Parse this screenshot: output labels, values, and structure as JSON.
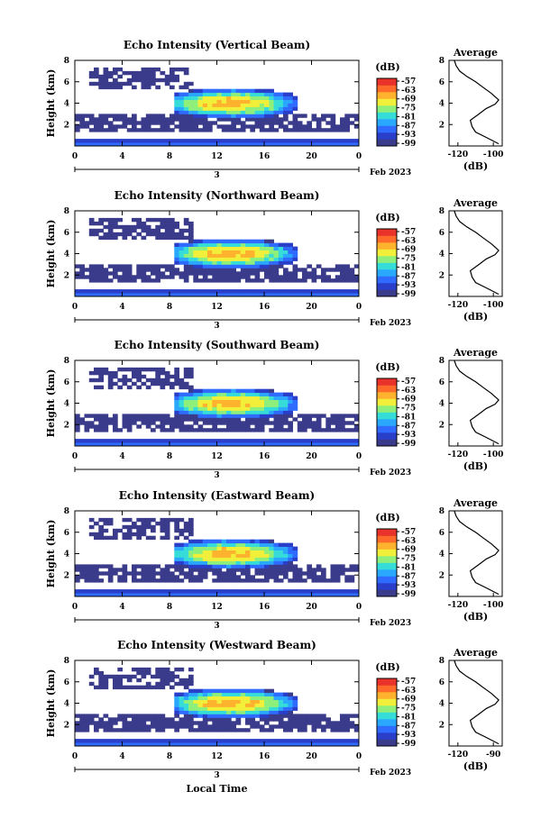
{
  "figure": {
    "xlabel": "Local Time",
    "month_label": "Feb 2023",
    "date_label": "3",
    "colorbar_unit": "(dB)",
    "colorbar_ticks": [
      "-57",
      "-63",
      "-69",
      "-75",
      "-81",
      "-87",
      "-93",
      "-99"
    ],
    "colorscale": [
      "#3b3b8c",
      "#2a3fc9",
      "#2f6bff",
      "#2aa8ff",
      "#36dcd8",
      "#8ef07a",
      "#f2ef3a",
      "#ffb22e",
      "#ff6a2a",
      "#e8322a"
    ]
  },
  "chart_data": [
    {
      "type": "heatmap",
      "title": "Echo Intensity (Vertical Beam)",
      "ylabel": "Height (km)",
      "xlim": [
        0,
        24
      ],
      "ylim": [
        0,
        8
      ],
      "x_ticks": [
        "0",
        "4",
        "8",
        "12",
        "16",
        "20",
        "0"
      ],
      "y_ticks": [
        "2",
        "4",
        "6",
        "8"
      ],
      "colorbar_label": "(dB)",
      "colorbar_ticks": [
        "-57",
        "-63",
        "-69",
        "-75",
        "-81",
        "-87",
        "-93",
        "-99"
      ],
      "profile": {
        "title": "Average",
        "xlabel": "(dB)",
        "x_ticks": [
          "-120",
          "-100"
        ],
        "y_ticks": [
          "2",
          "4",
          "6",
          "8"
        ],
        "x": [
          -97,
          -104,
          -110,
          -112,
          -113,
          -108,
          -104,
          -99,
          -97,
          -101,
          -106,
          -110,
          -115,
          -119,
          -121,
          -122
        ],
        "y": [
          0.2,
          0.8,
          1.3,
          1.8,
          2.4,
          3.0,
          3.5,
          3.9,
          4.3,
          4.9,
          5.5,
          6.0,
          6.5,
          7.0,
          7.5,
          8.0
        ]
      }
    },
    {
      "type": "heatmap",
      "title": "Echo Intensity (Northward Beam)",
      "ylabel": "Height (km)",
      "xlim": [
        0,
        24
      ],
      "ylim": [
        0,
        8
      ],
      "x_ticks": [
        "0",
        "4",
        "8",
        "12",
        "16",
        "20",
        "0"
      ],
      "y_ticks": [
        "2",
        "4",
        "6",
        "8"
      ],
      "colorbar_label": "(dB)",
      "colorbar_ticks": [
        "-57",
        "-63",
        "-69",
        "-75",
        "-81",
        "-87",
        "-93",
        "-99"
      ],
      "profile": {
        "title": "Average",
        "xlabel": "(dB)",
        "x_ticks": [
          "-120",
          "-100"
        ],
        "y_ticks": [
          "2",
          "4",
          "6",
          "8"
        ],
        "x": [
          -97,
          -104,
          -110,
          -112,
          -113,
          -108,
          -104,
          -99,
          -97,
          -101,
          -106,
          -110,
          -115,
          -119,
          -121,
          -122
        ],
        "y": [
          0.2,
          0.8,
          1.3,
          1.8,
          2.4,
          3.0,
          3.5,
          3.9,
          4.3,
          4.9,
          5.5,
          6.0,
          6.5,
          7.0,
          7.5,
          8.0
        ]
      }
    },
    {
      "type": "heatmap",
      "title": "Echo Intensity (Southward Beam)",
      "ylabel": "Height (km)",
      "xlim": [
        0,
        24
      ],
      "ylim": [
        0,
        8
      ],
      "x_ticks": [
        "0",
        "4",
        "8",
        "12",
        "16",
        "20",
        "0"
      ],
      "y_ticks": [
        "2",
        "4",
        "6",
        "8"
      ],
      "colorbar_label": "(dB)",
      "colorbar_ticks": [
        "-57",
        "-63",
        "-69",
        "-75",
        "-81",
        "-87",
        "-93",
        "-99"
      ],
      "profile": {
        "title": "Average",
        "xlabel": "(dB)",
        "x_ticks": [
          "-120",
          "-100"
        ],
        "y_ticks": [
          "2",
          "4",
          "6",
          "8"
        ],
        "x": [
          -97,
          -104,
          -110,
          -112,
          -113,
          -108,
          -104,
          -99,
          -97,
          -101,
          -106,
          -110,
          -115,
          -119,
          -121,
          -122
        ],
        "y": [
          0.2,
          0.8,
          1.3,
          1.8,
          2.4,
          3.0,
          3.5,
          3.9,
          4.3,
          4.9,
          5.5,
          6.0,
          6.5,
          7.0,
          7.5,
          8.0
        ]
      }
    },
    {
      "type": "heatmap",
      "title": "Echo Intensity (Eastward Beam)",
      "ylabel": "Height (km)",
      "xlim": [
        0,
        24
      ],
      "ylim": [
        0,
        8
      ],
      "x_ticks": [
        "0",
        "4",
        "8",
        "12",
        "16",
        "20",
        "0"
      ],
      "y_ticks": [
        "2",
        "4",
        "6",
        "8"
      ],
      "colorbar_label": "(dB)",
      "colorbar_ticks": [
        "-57",
        "-63",
        "-69",
        "-75",
        "-81",
        "-87",
        "-93",
        "-99"
      ],
      "profile": {
        "title": "Average",
        "xlabel": "(dB)",
        "x_ticks": [
          "-120",
          "-100"
        ],
        "y_ticks": [
          "2",
          "4",
          "6",
          "8"
        ],
        "x": [
          -97,
          -104,
          -110,
          -112,
          -113,
          -108,
          -104,
          -99,
          -97,
          -101,
          -106,
          -110,
          -115,
          -119,
          -121,
          -122
        ],
        "y": [
          0.2,
          0.8,
          1.3,
          1.8,
          2.4,
          3.0,
          3.5,
          3.9,
          4.3,
          4.9,
          5.5,
          6.0,
          6.5,
          7.0,
          7.5,
          8.0
        ]
      }
    },
    {
      "type": "heatmap",
      "title": "Echo Intensity (Westward Beam)",
      "ylabel": "Height (km)",
      "xlim": [
        0,
        24
      ],
      "ylim": [
        0,
        8
      ],
      "x_ticks": [
        "0",
        "4",
        "8",
        "12",
        "16",
        "20",
        "0"
      ],
      "y_ticks": [
        "2",
        "4",
        "6",
        "8"
      ],
      "colorbar_label": "(dB)",
      "colorbar_ticks": [
        "-57",
        "-63",
        "-69",
        "-75",
        "-81",
        "-87",
        "-93",
        "-99"
      ],
      "profile": {
        "title": "Average",
        "xlabel": "(dB)",
        "x_ticks": [
          "-120",
          "-90"
        ],
        "y_ticks": [
          "2",
          "4",
          "6",
          "8"
        ],
        "x": [
          -97,
          -104,
          -110,
          -112,
          -113,
          -108,
          -104,
          -99,
          -97,
          -101,
          -106,
          -110,
          -115,
          -119,
          -121,
          -122
        ],
        "y": [
          0.2,
          0.8,
          1.3,
          1.8,
          2.4,
          3.0,
          3.5,
          3.9,
          4.3,
          4.9,
          5.5,
          6.0,
          6.5,
          7.0,
          7.5,
          8.0
        ]
      }
    }
  ]
}
